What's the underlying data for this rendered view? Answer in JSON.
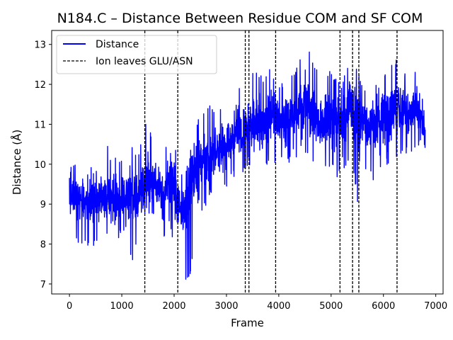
{
  "chart_data": {
    "type": "line",
    "title": "N184.C – Distance Between Residue COM and SF COM",
    "xlabel": "Frame",
    "ylabel": "Distance (Å)",
    "xlim": [
      -340,
      7140
    ],
    "ylim": [
      6.75,
      13.35
    ],
    "xticks": [
      0,
      1000,
      2000,
      3000,
      4000,
      5000,
      6000,
      7000
    ],
    "yticks": [
      7,
      8,
      9,
      10,
      11,
      12,
      13
    ],
    "grid": false,
    "legend_position": "top-left",
    "series": [
      {
        "name": "Distance",
        "color": "#0000ff",
        "style": "solid",
        "n_frames": 6800,
        "x": [
          0,
          100,
          200,
          300,
          400,
          500,
          600,
          700,
          800,
          900,
          1000,
          1100,
          1200,
          1300,
          1400,
          1500,
          1600,
          1700,
          1800,
          1900,
          2000,
          2100,
          2200,
          2300,
          2400,
          2500,
          2600,
          2700,
          2800,
          2900,
          3000,
          3100,
          3200,
          3300,
          3400,
          3500,
          3600,
          3700,
          3800,
          3900,
          4000,
          4100,
          4200,
          4300,
          4400,
          4500,
          4600,
          4700,
          4800,
          4900,
          5000,
          5100,
          5200,
          5300,
          5400,
          5500,
          5600,
          5700,
          5800,
          5900,
          6000,
          6100,
          6200,
          6300,
          6400,
          6500,
          6600,
          6700,
          6780
        ],
        "y_mean": [
          9.3,
          9.2,
          9.2,
          9.1,
          9.0,
          9.1,
          9.2,
          9.1,
          9.0,
          9.2,
          9.1,
          9.2,
          9.3,
          9.1,
          9.4,
          9.7,
          9.5,
          9.4,
          9.3,
          9.6,
          9.5,
          9.0,
          8.8,
          9.3,
          9.8,
          10.0,
          10.1,
          10.3,
          10.2,
          10.4,
          10.5,
          10.7,
          10.8,
          10.7,
          10.9,
          11.0,
          11.1,
          11.0,
          11.1,
          11.2,
          11.1,
          11.0,
          11.1,
          11.2,
          11.3,
          11.5,
          11.4,
          11.2,
          11.0,
          11.1,
          11.2,
          10.9,
          11.0,
          11.2,
          11.5,
          11.2,
          11.0,
          10.9,
          11.0,
          11.0,
          11.2,
          11.1,
          11.3,
          11.4,
          11.3,
          11.2,
          11.4,
          11.2,
          10.8
        ],
        "y_min": [
          8.05,
          8.1,
          8.0,
          7.9,
          7.8,
          8.0,
          8.2,
          8.1,
          8.0,
          8.1,
          8.2,
          8.3,
          7.45,
          8.2,
          8.3,
          8.8,
          8.6,
          8.5,
          8.0,
          8.6,
          7.75,
          7.9,
          7.05,
          7.2,
          8.0,
          8.8,
          8.9,
          9.2,
          9.0,
          9.3,
          9.4,
          9.6,
          9.8,
          9.7,
          9.8,
          10.0,
          10.1,
          10.0,
          9.9,
          10.0,
          9.8,
          9.9,
          10.0,
          10.1,
          10.0,
          10.3,
          10.2,
          9.9,
          9.7,
          9.8,
          9.9,
          9.7,
          9.6,
          10.0,
          10.2,
          9.0,
          9.8,
          9.7,
          9.6,
          9.7,
          9.9,
          10.0,
          10.0,
          10.1,
          10.2,
          10.3,
          10.3,
          10.3,
          10.3
        ],
        "y_max": [
          10.3,
          10.1,
          10.0,
          9.8,
          10.0,
          9.9,
          10.2,
          10.6,
          10.2,
          10.2,
          10.2,
          10.4,
          10.5,
          10.1,
          10.8,
          11.2,
          10.4,
          10.3,
          10.6,
          10.4,
          10.6,
          9.9,
          9.6,
          10.3,
          10.8,
          11.6,
          11.3,
          11.6,
          11.2,
          11.5,
          11.8,
          12.1,
          12.2,
          11.8,
          12.0,
          12.3,
          12.3,
          12.2,
          12.4,
          12.3,
          12.2,
          12.0,
          12.2,
          12.4,
          12.6,
          13.15,
          12.9,
          12.5,
          12.1,
          12.2,
          12.4,
          12.2,
          12.1,
          12.5,
          12.8,
          12.5,
          12.0,
          11.9,
          12.2,
          12.0,
          12.4,
          12.3,
          12.6,
          12.8,
          12.4,
          12.2,
          12.5,
          12.3,
          11.4
        ]
      }
    ],
    "vlines": {
      "name": "Ion leaves GLU/ASN",
      "color": "#000000",
      "style": "dashed",
      "x": [
        1440,
        2070,
        3360,
        3430,
        3940,
        5170,
        5410,
        5530,
        6260
      ]
    }
  }
}
